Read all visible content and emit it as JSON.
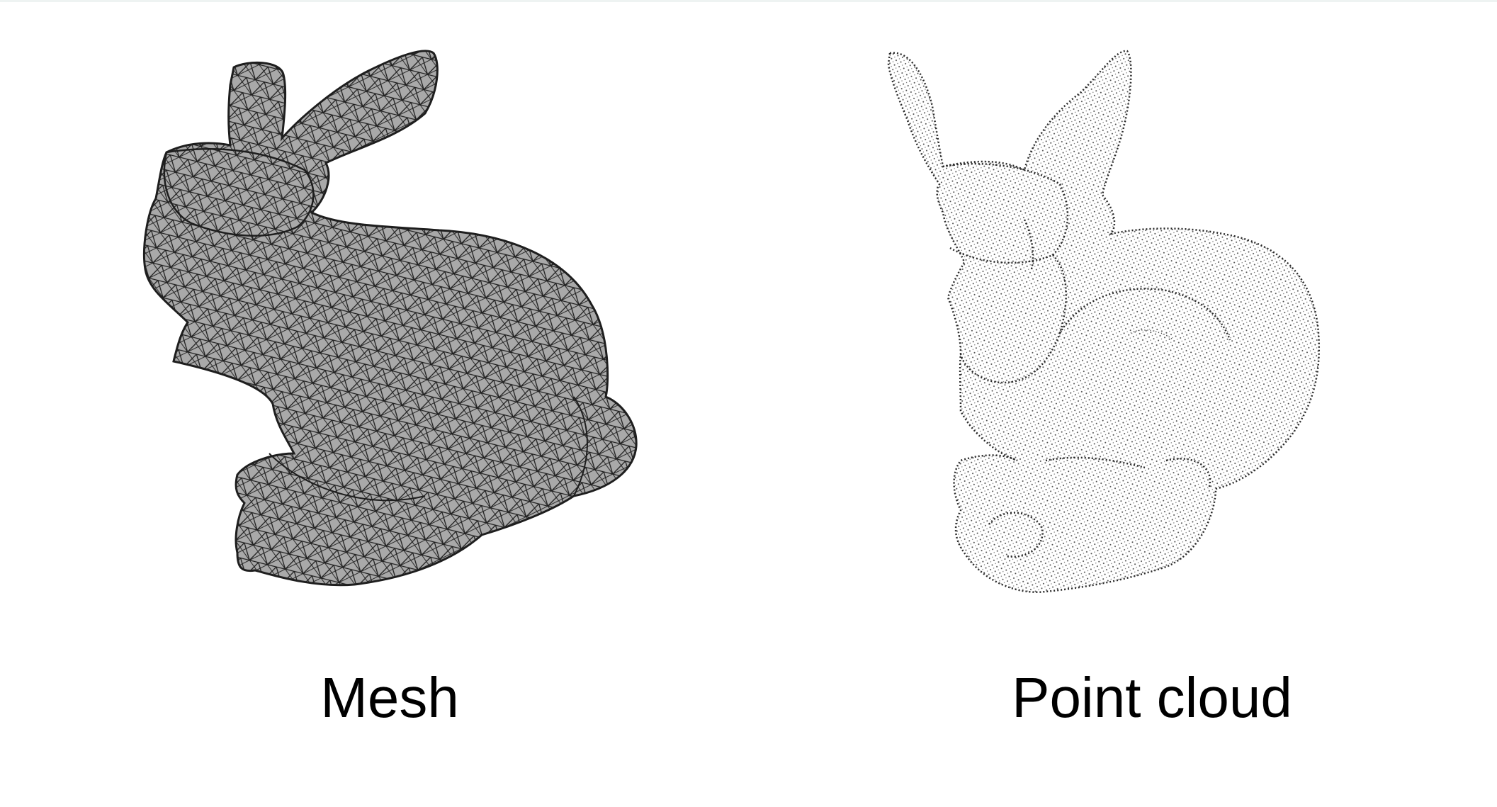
{
  "figure": {
    "panels": [
      {
        "id": "mesh",
        "label": "Mesh",
        "fill": "#a9a9a9",
        "stroke": "#222222"
      },
      {
        "id": "point-cloud",
        "label": "Point cloud",
        "fill": "#ffffff",
        "stroke": "#1a1a1a"
      }
    ]
  }
}
